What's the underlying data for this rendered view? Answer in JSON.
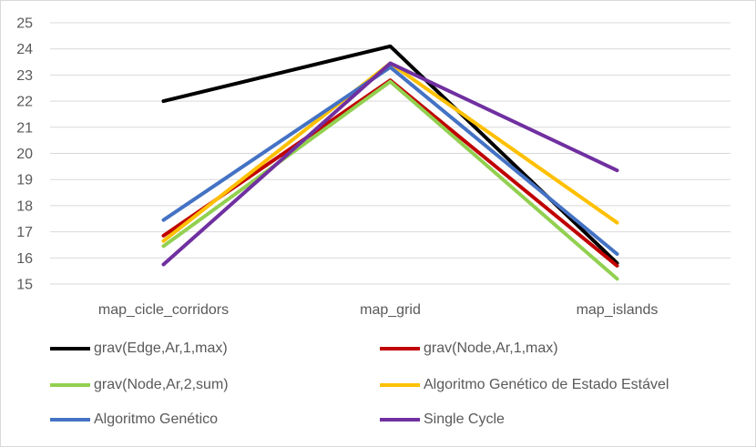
{
  "chart_data": {
    "type": "line",
    "title": "",
    "xlabel": "",
    "ylabel": "",
    "categories": [
      "map_cicle_corridors",
      "map_grid",
      "map_islands"
    ],
    "ylim": [
      15,
      25
    ],
    "yticks": [
      15,
      16,
      17,
      18,
      19,
      20,
      21,
      22,
      23,
      24,
      25
    ],
    "grid": true,
    "legend_position": "bottom",
    "series": [
      {
        "name": "grav(Edge,Ar,1,max)",
        "color": "#000000",
        "values": [
          22.0,
          24.1,
          15.8
        ]
      },
      {
        "name": "grav(Node,Ar,1,max)",
        "color": "#c00000",
        "values": [
          16.85,
          22.8,
          15.7
        ]
      },
      {
        "name": "grav(Node,Ar,2,sum)",
        "color": "#92d050",
        "values": [
          16.45,
          22.75,
          15.2
        ]
      },
      {
        "name": "Algoritmo Genético de Estado Estável",
        "color": "#ffc000",
        "values": [
          16.65,
          23.45,
          17.35
        ]
      },
      {
        "name": "Algoritmo Genético",
        "color": "#4472c4",
        "values": [
          17.45,
          23.3,
          16.15
        ]
      },
      {
        "name": "Single Cycle",
        "color": "#7030a0",
        "values": [
          15.75,
          23.45,
          19.35
        ]
      }
    ]
  }
}
